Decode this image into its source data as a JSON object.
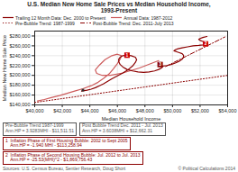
{
  "chart_data": {
    "type": "line",
    "title": "U.S. Median New Home Sale Prices vs Median Household Income,\n1993-Present",
    "xlabel": "Median Household Income",
    "ylabel": "Median New Home Sale Price",
    "xlim": [
      40000,
      54000
    ],
    "ylim": [
      140000,
      290000
    ],
    "xticks": [
      {
        "value": 40000,
        "label": "$40,000"
      },
      {
        "value": 42000,
        "label": "$42,000"
      },
      {
        "value": 44000,
        "label": "$44,000"
      },
      {
        "value": 46000,
        "label": "$46,000"
      },
      {
        "value": 48000,
        "label": "$48,000"
      },
      {
        "value": 50000,
        "label": "$50,000"
      },
      {
        "value": 52000,
        "label": "$52,000"
      },
      {
        "value": 54000,
        "label": "$54,000"
      }
    ],
    "yticks": [
      {
        "value": 140000,
        "label": "$140,000"
      },
      {
        "value": 160000,
        "label": "$160,000"
      },
      {
        "value": 180000,
        "label": "$180,000"
      },
      {
        "value": 200000,
        "label": "$200,000"
      },
      {
        "value": 220000,
        "label": "$220,000"
      },
      {
        "value": 240000,
        "label": "$240,000"
      },
      {
        "value": 260000,
        "label": "$260,000"
      },
      {
        "value": 280000,
        "label": "$280,000"
      }
    ],
    "grid": true,
    "legend": "upper left",
    "series": [
      {
        "name": "Trailing 12 Month Data: Dec. 2000 to Present",
        "color": "#8b0000",
        "line_style": "solid",
        "x": [
          43400,
          43600,
          43800,
          44100,
          44400,
          44700,
          45000,
          45300,
          45600,
          46000,
          46400,
          46800,
          47100,
          47300,
          47400,
          47300,
          47000,
          46700,
          46400,
          46200,
          46100,
          46100,
          46200,
          46400,
          46700,
          47100,
          47500,
          47900,
          48300,
          48700,
          49000,
          49200,
          49300,
          49200,
          49100,
          49000,
          49000,
          49100,
          49300,
          49600,
          49900,
          50200,
          50500,
          50700,
          50800,
          50800,
          50700,
          50500,
          50300,
          50200,
          50100,
          50200,
          50400,
          50700,
          51100,
          51500,
          51900,
          52200,
          52400,
          52500,
          52500,
          52400,
          52200,
          52000,
          51900,
          52000,
          52200,
          52500
        ],
        "values": [
          168000,
          169000,
          170000,
          172000,
          175000,
          179000,
          183000,
          188000,
          193000,
          199000,
          205000,
          212000,
          219000,
          226000,
          232000,
          237000,
          240000,
          241000,
          240000,
          237000,
          233000,
          228000,
          222000,
          217000,
          212000,
          209000,
          207000,
          206000,
          207000,
          209000,
          212000,
          215000,
          218000,
          220000,
          221000,
          221000,
          220000,
          219000,
          219000,
          220000,
          222000,
          225000,
          229000,
          233000,
          237000,
          241000,
          244000,
          246000,
          248000,
          249000,
          250000,
          252000,
          254000,
          256000,
          258000,
          260000,
          261000,
          262000,
          263000,
          264000,
          265000,
          267000,
          269000,
          271000,
          273000,
          275000,
          277000,
          279000
        ]
      },
      {
        "name": "Annual Data: 1987-2012",
        "color": "#cd5c5c",
        "line_style": "solid",
        "x": [
          40200,
          40700,
          41200,
          41800,
          42300,
          42900,
          43500,
          44100,
          44600,
          45000,
          45400,
          45700,
          46000,
          46200,
          46300,
          46000,
          45600,
          45100,
          44700,
          44400,
          44500,
          44900,
          45500,
          46400,
          47600,
          49000
        ],
        "values": [
          148000,
          151000,
          155000,
          159000,
          163000,
          168000,
          173000,
          179000,
          186000,
          194000,
          203000,
          213000,
          224000,
          233000,
          240000,
          243000,
          240000,
          232000,
          221000,
          211000,
          204000,
          200000,
          200000,
          205000,
          215000,
          230000
        ]
      },
      {
        "name": "Pre-Bubble Trend: 1987-1999",
        "color": "#8b0000",
        "line_style": "dotted",
        "x": [
          40000,
          54000
        ],
        "values": [
          145000,
          200000
        ]
      },
      {
        "name": "Post-Bubble Trend: Dec. 2011-July 2013",
        "color": "#8b0000",
        "line_style": "dashdot",
        "x": [
          49500,
          53800
        ],
        "values": [
          218000,
          278000
        ]
      }
    ],
    "points": [
      {
        "x": 43500,
        "y": 170000,
        "color": "#333333",
        "marker": "square"
      },
      {
        "x": 49100,
        "y": 221000,
        "color": "#333333",
        "marker": "square"
      },
      {
        "x": 52500,
        "y": 265000,
        "color": "#111111",
        "marker": "square"
      }
    ],
    "numbered_markers": [
      {
        "label": "1",
        "x": 46700,
        "y": 241000,
        "color": "#cc0000"
      },
      {
        "label": "2",
        "x": 52400,
        "y": 264000,
        "color": "#cc0000"
      },
      {
        "label": "3",
        "x": 49100,
        "y": 222000,
        "color": "#8b0000"
      }
    ],
    "annotations": [
      {
        "text": "Pre-Bubble Trend 1987-1999\nAnn.HP = 3.9283MHI - $11,511.51",
        "color": "#555555"
      },
      {
        "text": "Post Bubble Trend Dec. 2011 - Jul. 2013\nAnn.HP = 3.6038MHI + $12,662.31",
        "color": "#555555"
      },
      {
        "text": "1  Inflation Phase of First Housing Bubble: 2002 to Sept 2005\n    Ann.HP = -1.940 MHI - $113,258.94",
        "color": "#8b0000"
      },
      {
        "text": "2  Inflation Phase of Second Housing Bubble: Jul. 2012 to Jul. 2013\n    Ann.HP = -25.53(MHI)^2 - $1,869,756.43",
        "color": "#8b0000"
      }
    ],
    "source": "Sources: U.S. Census Bureau, Sentier Research, Doug Short",
    "copyright": "© Political Calculations 2014"
  }
}
